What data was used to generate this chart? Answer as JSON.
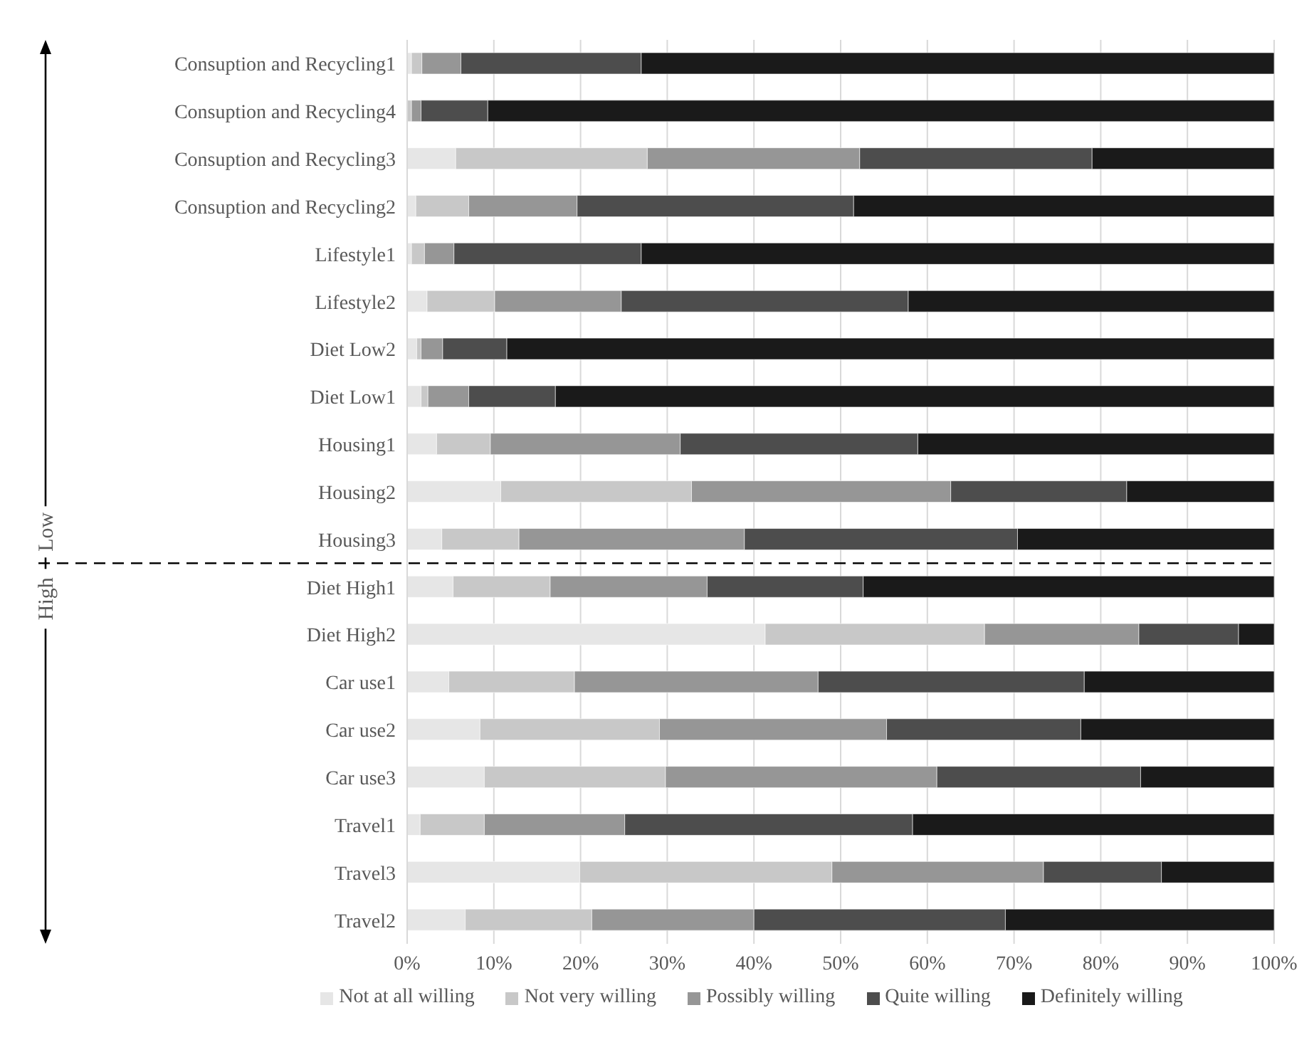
{
  "chart_data": {
    "type": "bar",
    "orientation": "horizontal",
    "stacked": true,
    "categories": [
      "Consuption and Recycling1",
      "Consuption and Recycling4",
      "Consuption and Recycling3",
      "Consuption and Recycling2",
      "Lifestyle1",
      "Lifestyle2",
      "Diet Low2",
      "Diet Low1",
      "Housing1",
      "Housing2",
      "Housing3",
      "Diet High1",
      "Diet High2",
      "Car use1",
      "Car use2",
      "Car use3",
      "Travel1",
      "Travel3",
      "Travel2"
    ],
    "series": [
      {
        "name": "Not at all willing",
        "color": "#e6e6e6",
        "values": [
          0.5,
          0,
          5.6,
          1.0,
          0.5,
          2.3,
          1.1,
          1.6,
          3.4,
          10.8,
          4.0,
          5.3,
          41.3,
          4.8,
          8.4,
          8.9,
          1.5,
          19.9,
          6.7
        ]
      },
      {
        "name": "Not very willing",
        "color": "#c8c8c8",
        "values": [
          1.2,
          0.5,
          22.1,
          6.1,
          1.5,
          7.8,
          0.5,
          0.8,
          6.2,
          22.0,
          8.9,
          11.2,
          25.3,
          14.5,
          20.7,
          20.9,
          7.4,
          29.1,
          14.6
        ]
      },
      {
        "name": "Possibly willing",
        "color": "#969696",
        "values": [
          4.5,
          1.1,
          24.5,
          12.5,
          3.4,
          14.6,
          2.5,
          4.7,
          21.9,
          29.9,
          26.0,
          18.1,
          17.8,
          28.1,
          26.2,
          31.3,
          16.2,
          24.4,
          18.7
        ]
      },
      {
        "name": "Quite willing",
        "color": "#4d4d4d",
        "values": [
          20.8,
          7.7,
          26.8,
          31.9,
          21.6,
          33.1,
          7.4,
          10.0,
          27.4,
          20.3,
          31.5,
          18.0,
          11.5,
          30.7,
          22.4,
          23.5,
          33.2,
          13.6,
          29.0
        ]
      },
      {
        "name": "Definitely willing",
        "color": "#1a1a1a",
        "values": [
          73.0,
          90.7,
          21.0,
          48.5,
          73.0,
          42.2,
          88.5,
          82.9,
          41.1,
          17.0,
          29.6,
          47.4,
          4.1,
          21.9,
          22.3,
          15.4,
          41.7,
          13.0,
          31.0
        ]
      }
    ],
    "xlim": [
      0,
      100
    ],
    "xticks": [
      {
        "value": 0,
        "label": "0%"
      },
      {
        "value": 10,
        "label": "10%"
      },
      {
        "value": 20,
        "label": "20%"
      },
      {
        "value": 30,
        "label": "30%"
      },
      {
        "value": 40,
        "label": "40%"
      },
      {
        "value": 50,
        "label": "50%"
      },
      {
        "value": 60,
        "label": "60%"
      },
      {
        "value": 70,
        "label": "70%"
      },
      {
        "value": 80,
        "label": "80%"
      },
      {
        "value": 90,
        "label": "90%"
      },
      {
        "value": 100,
        "label": "100%"
      }
    ],
    "grid": "x",
    "legend": "bottom",
    "annotations": [
      "Low",
      "High"
    ]
  }
}
